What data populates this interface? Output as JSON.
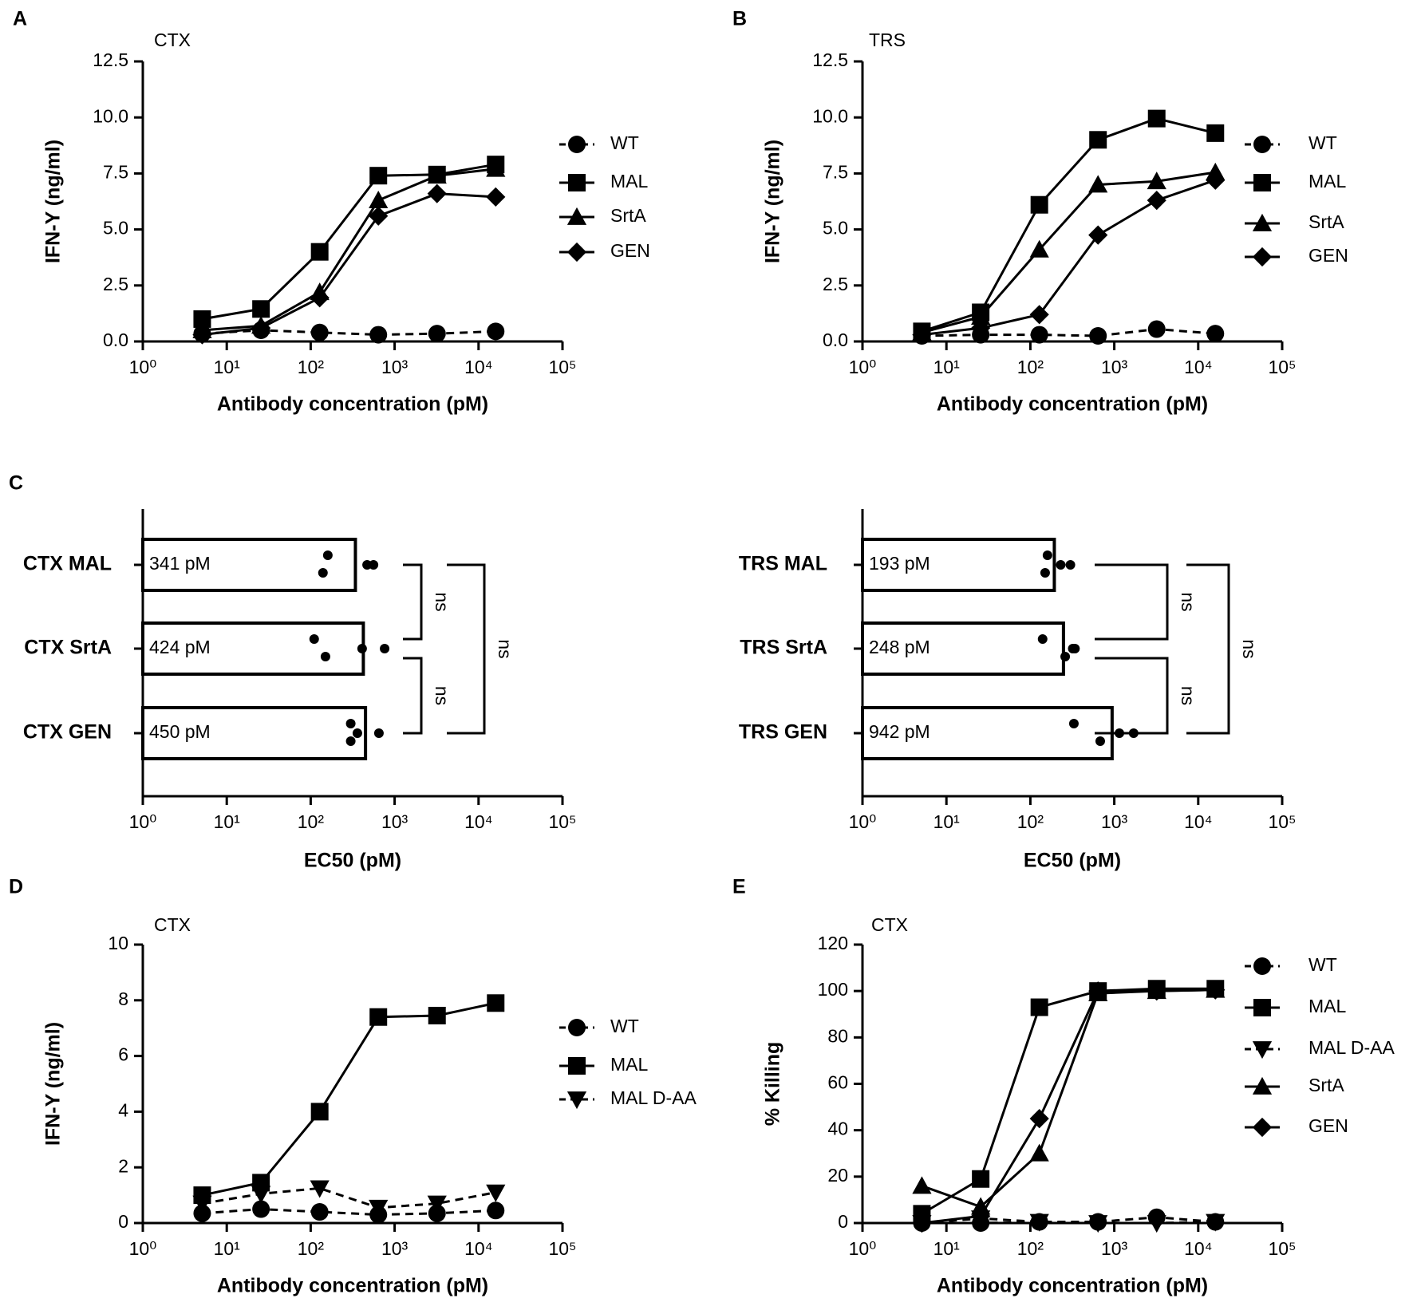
{
  "chart_data": [
    {
      "type": "line",
      "panel": "A",
      "title": "CTX",
      "xlabel": "Antibody concentration (pM)",
      "ylabel": "IFN-Y (ng/ml)",
      "xlog": true,
      "x": [
        5.1,
        25.6,
        128,
        640,
        3200,
        16000
      ],
      "xlim": [
        1,
        100000
      ],
      "xticks": [
        {
          "value": 1,
          "label": "10⁰"
        },
        {
          "value": 10,
          "label": "10¹"
        },
        {
          "value": 100,
          "label": "10²"
        },
        {
          "value": 1000,
          "label": "10³"
        },
        {
          "value": 10000,
          "label": "10⁴"
        },
        {
          "value": 100000,
          "label": "10⁵"
        }
      ],
      "ylim": [
        0,
        12.5
      ],
      "yticks": [
        {
          "value": 0,
          "label": "0.0"
        },
        2.5,
        {
          "value": 5,
          "label": "5.0"
        },
        7.5,
        {
          "value": 10,
          "label": "10.0"
        },
        12.5
      ],
      "legend": "right",
      "series": [
        {
          "name": "WT",
          "color": "#000000",
          "marker": "circle",
          "dashed": true,
          "values": [
            0.35,
            0.5,
            0.4,
            0.3,
            0.35,
            0.45
          ]
        },
        {
          "name": "MAL",
          "color": "#000000",
          "marker": "square",
          "values": [
            1.0,
            1.45,
            4.0,
            7.4,
            7.45,
            7.9
          ]
        },
        {
          "name": "SrtA",
          "color": "#000000",
          "marker": "triangle",
          "values": [
            0.5,
            0.7,
            2.2,
            6.3,
            7.4,
            7.7
          ]
        },
        {
          "name": "GEN",
          "color": "#000000",
          "marker": "diamond",
          "values": [
            0.3,
            0.6,
            1.95,
            5.6,
            6.6,
            6.45
          ]
        }
      ]
    },
    {
      "type": "line",
      "panel": "B",
      "title": "TRS",
      "xlabel": "Antibody concentration (pM)",
      "ylabel": "IFN-Y (ng/ml)",
      "xlog": true,
      "x": [
        5.1,
        25.6,
        128,
        640,
        3200,
        16000
      ],
      "xlim": [
        1,
        100000
      ],
      "xticks": [
        {
          "value": 1,
          "label": "10⁰"
        },
        {
          "value": 10,
          "label": "10¹"
        },
        {
          "value": 100,
          "label": "10²"
        },
        {
          "value": 1000,
          "label": "10³"
        },
        {
          "value": 10000,
          "label": "10⁴"
        },
        {
          "value": 100000,
          "label": "10⁵"
        }
      ],
      "ylim": [
        0,
        12.5
      ],
      "yticks": [
        {
          "value": 0,
          "label": "0.0"
        },
        2.5,
        {
          "value": 5,
          "label": "5.0"
        },
        7.5,
        {
          "value": 10,
          "label": "10.0"
        },
        12.5
      ],
      "legend": "right",
      "series": [
        {
          "name": "WT",
          "color": "#000000",
          "marker": "circle",
          "dashed": true,
          "values": [
            0.25,
            0.3,
            0.3,
            0.25,
            0.55,
            0.35
          ]
        },
        {
          "name": "MAL",
          "color": "#000000",
          "marker": "square",
          "values": [
            0.45,
            1.3,
            6.1,
            9.0,
            9.95,
            9.3
          ]
        },
        {
          "name": "SrtA",
          "color": "#000000",
          "marker": "triangle",
          "values": [
            0.4,
            1.1,
            4.1,
            7.0,
            7.15,
            7.55
          ]
        },
        {
          "name": "GEN",
          "color": "#000000",
          "marker": "diamond",
          "values": [
            0.3,
            0.6,
            1.2,
            4.75,
            6.3,
            7.2
          ]
        }
      ]
    },
    {
      "type": "hbar",
      "panel": "C",
      "xlabel": "EC50 (pM)",
      "xlog": true,
      "categories": [
        "CTX MAL",
        "CTX SrtA",
        "CTX GEN"
      ],
      "values": [
        341,
        424,
        450
      ],
      "value_labels": [
        "341 pM",
        "424 pM",
        "450 pM"
      ],
      "points": [
        [
          160,
          140,
          470,
          560
        ],
        [
          110,
          150,
          410,
          760
        ],
        [
          300,
          300,
          360,
          650
        ]
      ],
      "xlim": [
        1,
        100000
      ],
      "xticks": [
        {
          "value": 1,
          "label": "10⁰"
        },
        {
          "value": 10,
          "label": "10¹"
        },
        {
          "value": 100,
          "label": "10²"
        },
        {
          "value": 1000,
          "label": "10³"
        },
        {
          "value": 10000,
          "label": "10⁴"
        },
        {
          "value": 100000,
          "label": "10⁵"
        }
      ],
      "annotations": [
        "ns",
        "ns",
        "ns"
      ]
    },
    {
      "type": "hbar",
      "xlabel": "EC50 (pM)",
      "xlog": true,
      "categories": [
        "TRS MAL",
        "TRS SrtA",
        "TRS GEN"
      ],
      "values": [
        193,
        248,
        942
      ],
      "value_labels": [
        "193 pM",
        "248 pM",
        "942 pM"
      ],
      "points": [
        [
          160,
          150,
          230,
          300
        ],
        [
          140,
          260,
          320,
          340
        ],
        [
          330,
          680,
          1150,
          1700
        ]
      ],
      "xlim": [
        1,
        100000
      ],
      "xticks": [
        {
          "value": 1,
          "label": "10⁰"
        },
        {
          "value": 10,
          "label": "10¹"
        },
        {
          "value": 100,
          "label": "10²"
        },
        {
          "value": 1000,
          "label": "10³"
        },
        {
          "value": 10000,
          "label": "10⁴"
        },
        {
          "value": 100000,
          "label": "10⁵"
        }
      ],
      "annotations": [
        "ns",
        "ns",
        "ns"
      ]
    },
    {
      "type": "line",
      "panel": "D",
      "title": "CTX",
      "xlabel": "Antibody concentration (pM)",
      "ylabel": "IFN-Y (ng/ml)",
      "xlog": true,
      "x": [
        5.1,
        25.6,
        128,
        640,
        3200,
        16000
      ],
      "xlim": [
        1,
        100000
      ],
      "xticks": [
        {
          "value": 1,
          "label": "10⁰"
        },
        {
          "value": 10,
          "label": "10¹"
        },
        {
          "value": 100,
          "label": "10²"
        },
        {
          "value": 1000,
          "label": "10³"
        },
        {
          "value": 10000,
          "label": "10⁴"
        },
        {
          "value": 100000,
          "label": "10⁵"
        }
      ],
      "ylim": [
        0,
        10
      ],
      "yticks": [
        0,
        2,
        4,
        6,
        8,
        10
      ],
      "legend": "right",
      "series": [
        {
          "name": "WT",
          "color": "#000000",
          "marker": "circle",
          "dashed": true,
          "values": [
            0.35,
            0.5,
            0.4,
            0.3,
            0.35,
            0.45
          ]
        },
        {
          "name": "MAL",
          "color": "#000000",
          "marker": "square",
          "values": [
            1.0,
            1.45,
            4.0,
            7.4,
            7.45,
            7.9
          ]
        },
        {
          "name": "MAL D-AA",
          "color": "#000000",
          "marker": "down",
          "dashed": true,
          "values": [
            0.7,
            1.05,
            1.25,
            0.55,
            0.7,
            1.1
          ]
        }
      ]
    },
    {
      "type": "line",
      "panel": "E",
      "title": "CTX",
      "xlabel": "Antibody concentration (pM)",
      "ylabel": "% Killing",
      "xlog": true,
      "x": [
        5.1,
        25.6,
        128,
        640,
        3200,
        16000
      ],
      "xlim": [
        1,
        100000
      ],
      "xticks": [
        {
          "value": 1,
          "label": "10⁰"
        },
        {
          "value": 10,
          "label": "10¹"
        },
        {
          "value": 100,
          "label": "10²"
        },
        {
          "value": 1000,
          "label": "10³"
        },
        {
          "value": 10000,
          "label": "10⁴"
        },
        {
          "value": 100000,
          "label": "10⁵"
        }
      ],
      "ylim": [
        0,
        120
      ],
      "yticks": [
        0,
        20,
        40,
        60,
        80,
        100,
        120
      ],
      "legend": "right",
      "series": [
        {
          "name": "WT",
          "color": "#000000",
          "marker": "circle",
          "dashed": true,
          "values": [
            0,
            0,
            0.5,
            0.5,
            2.5,
            0.5
          ]
        },
        {
          "name": "MAL",
          "color": "#000000",
          "marker": "square",
          "values": [
            4,
            19,
            93,
            100,
            101,
            101
          ]
        },
        {
          "name": "MAL D-AA",
          "color": "#000000",
          "marker": "down",
          "dashed": true,
          "values": [
            0,
            2,
            0.5,
            0,
            0,
            0.5
          ]
        },
        {
          "name": "SrtA",
          "color": "#000000",
          "marker": "triangle",
          "values": [
            16,
            7,
            30,
            99,
            100,
            100.5
          ]
        },
        {
          "name": "GEN",
          "color": "#000000",
          "marker": "diamond",
          "values": [
            0,
            3,
            45,
            100,
            100,
            100.5
          ]
        }
      ]
    }
  ]
}
